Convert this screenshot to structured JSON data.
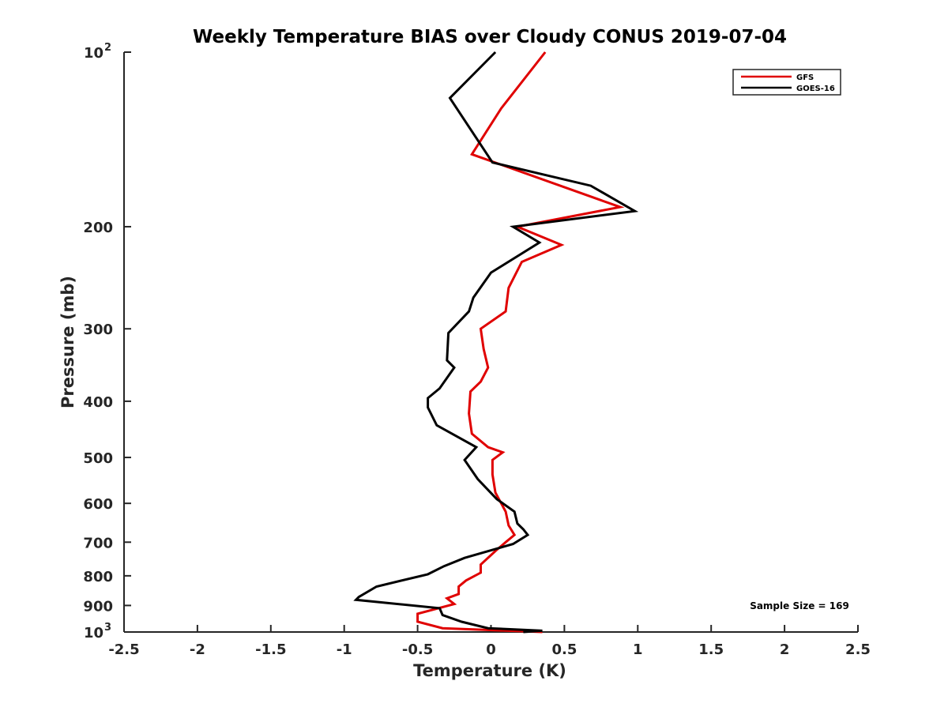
{
  "chart_data": {
    "type": "line",
    "title": "Weekly Temperature BIAS over Cloudy CONUS 2019-07-04",
    "xlabel": "Temperature (K)",
    "ylabel": "Pressure (mb)",
    "xlim": [
      -2.5,
      2.5
    ],
    "ylim": [
      100,
      1000
    ],
    "y_scale": "log",
    "y_reversed": true,
    "x_ticks": [
      -2.5,
      -2,
      -1.5,
      -1,
      -0.5,
      0,
      0.5,
      1,
      1.5,
      2,
      2.5
    ],
    "x_tick_labels": [
      "-2.5",
      "-2",
      "-1.5",
      "-1",
      "-0.5",
      "0",
      "0.5",
      "1",
      "1.5",
      "2",
      "2.5"
    ],
    "y_ticks": [
      {
        "value": 100,
        "base": "10",
        "exp": "2"
      },
      {
        "value": 200,
        "label": "200"
      },
      {
        "value": 300,
        "label": "300"
      },
      {
        "value": 400,
        "label": "400"
      },
      {
        "value": 500,
        "label": "500"
      },
      {
        "value": 600,
        "label": "600"
      },
      {
        "value": 700,
        "label": "700"
      },
      {
        "value": 800,
        "label": "800"
      },
      {
        "value": 900,
        "label": "900"
      },
      {
        "value": 1000,
        "base": "10",
        "exp": "3"
      }
    ],
    "grid": false,
    "legend_position": "top-right",
    "annotation": "Sample Size = 169",
    "series": [
      {
        "name": "GFS",
        "color": "#e00000",
        "points": [
          [
            0.37,
            100
          ],
          [
            0.07,
            125
          ],
          [
            -0.13,
            150
          ],
          [
            0.88,
            185
          ],
          [
            0.18,
            200
          ],
          [
            0.48,
            215
          ],
          [
            0.21,
            230
          ],
          [
            0.12,
            255
          ],
          [
            0.1,
            280
          ],
          [
            -0.07,
            300
          ],
          [
            -0.05,
            325
          ],
          [
            -0.02,
            350
          ],
          [
            -0.07,
            370
          ],
          [
            -0.14,
            385
          ],
          [
            -0.15,
            420
          ],
          [
            -0.13,
            455
          ],
          [
            -0.02,
            480
          ],
          [
            0.08,
            490
          ],
          [
            0.01,
            505
          ],
          [
            0.01,
            535
          ],
          [
            0.03,
            575
          ],
          [
            0.1,
            620
          ],
          [
            0.12,
            655
          ],
          [
            0.16,
            680
          ],
          [
            0.1,
            700
          ],
          [
            0.03,
            725
          ],
          [
            -0.07,
            765
          ],
          [
            -0.07,
            790
          ],
          [
            -0.17,
            815
          ],
          [
            -0.22,
            835
          ],
          [
            -0.22,
            860
          ],
          [
            -0.3,
            875
          ],
          [
            -0.25,
            895
          ],
          [
            -0.5,
            930
          ],
          [
            -0.5,
            960
          ],
          [
            -0.33,
            985
          ],
          [
            0.35,
            1000
          ]
        ]
      },
      {
        "name": "GOES-16",
        "color": "#000000",
        "points": [
          [
            0.03,
            100
          ],
          [
            -0.28,
            120
          ],
          [
            0.01,
            155
          ],
          [
            0.68,
            170
          ],
          [
            0.98,
            188
          ],
          [
            0.15,
            200
          ],
          [
            0.33,
            213
          ],
          [
            0.0,
            240
          ],
          [
            -0.12,
            265
          ],
          [
            -0.15,
            280
          ],
          [
            -0.29,
            305
          ],
          [
            -0.3,
            340
          ],
          [
            -0.25,
            350
          ],
          [
            -0.35,
            380
          ],
          [
            -0.43,
            395
          ],
          [
            -0.43,
            410
          ],
          [
            -0.37,
            440
          ],
          [
            -0.1,
            480
          ],
          [
            -0.18,
            505
          ],
          [
            -0.09,
            545
          ],
          [
            0.04,
            590
          ],
          [
            0.16,
            620
          ],
          [
            0.18,
            650
          ],
          [
            0.22,
            665
          ],
          [
            0.25,
            680
          ],
          [
            0.15,
            705
          ],
          [
            -0.18,
            745
          ],
          [
            -0.32,
            770
          ],
          [
            -0.43,
            795
          ],
          [
            -0.78,
            835
          ],
          [
            -0.9,
            870
          ],
          [
            -0.92,
            880
          ],
          [
            -0.35,
            910
          ],
          [
            -0.33,
            935
          ],
          [
            -0.2,
            960
          ],
          [
            -0.02,
            985
          ],
          [
            0.35,
            995
          ],
          [
            0.22,
            1000
          ]
        ]
      }
    ]
  }
}
